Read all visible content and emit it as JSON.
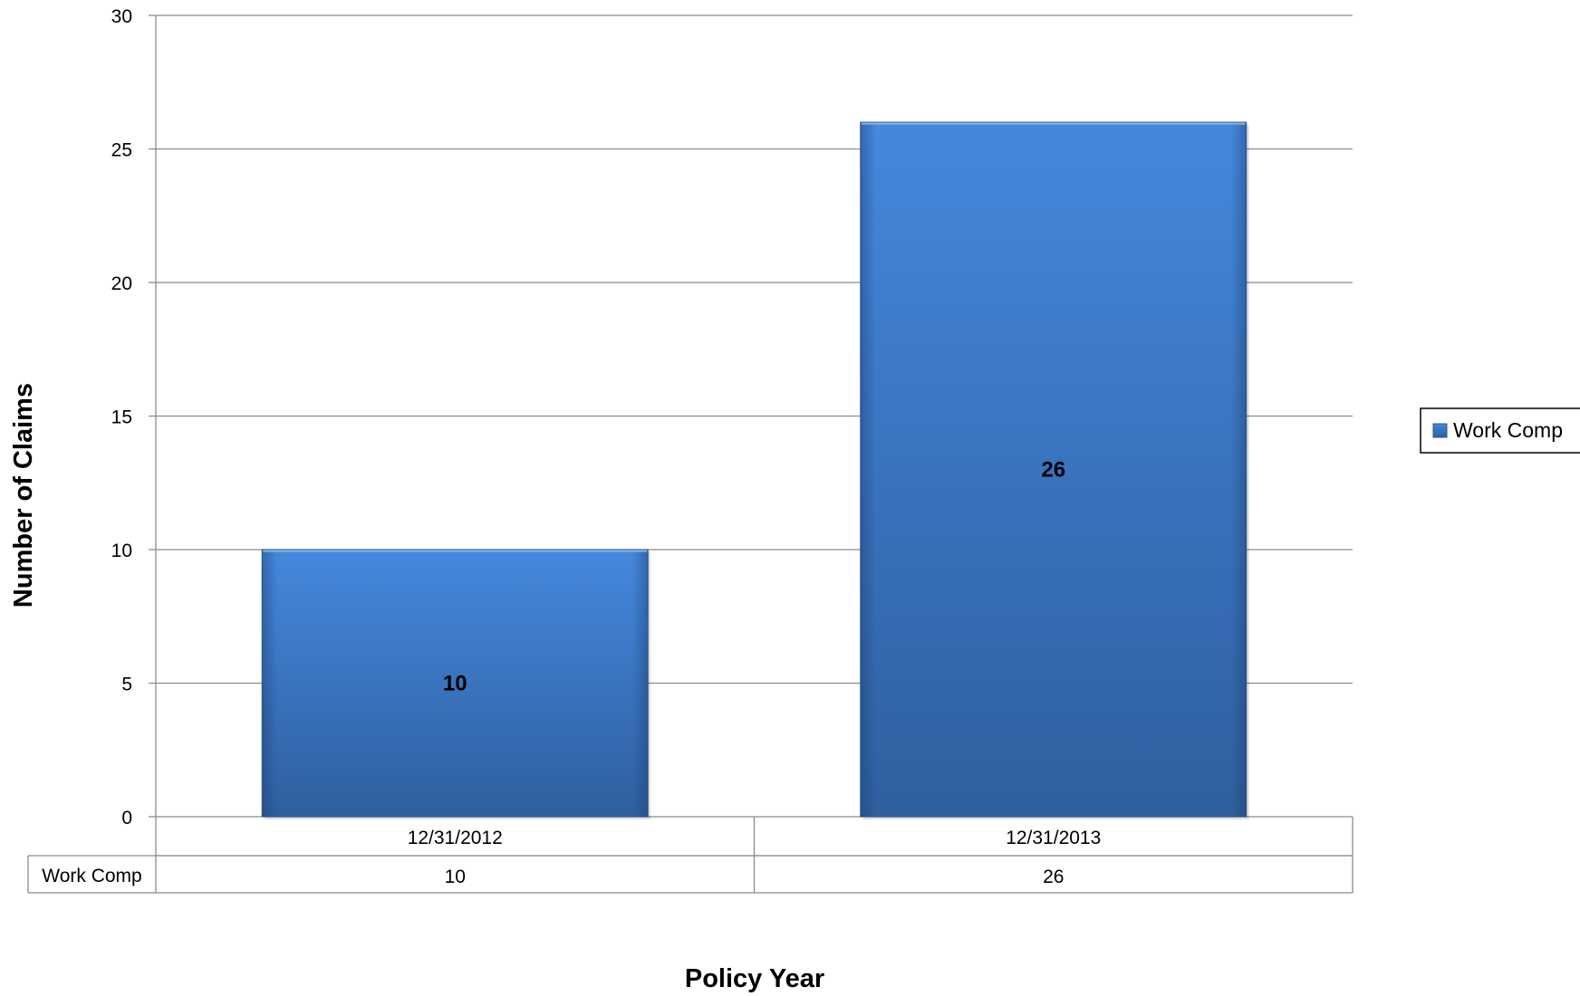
{
  "chart_data": {
    "type": "bar",
    "categories": [
      "12/31/2012",
      "12/31/2013"
    ],
    "series": [
      {
        "name": "Work Comp",
        "values": [
          10,
          26
        ]
      }
    ],
    "title": "",
    "xlabel": "Policy Year",
    "ylabel": "Number of Claims",
    "ylim": [
      0,
      30
    ],
    "yticks": [
      0,
      5,
      10,
      15,
      20,
      25,
      30
    ],
    "grid": true,
    "legend": {
      "position": "right",
      "entries": [
        "Work Comp"
      ]
    },
    "data_table": {
      "row_label": "Work Comp",
      "values": [
        "10",
        "26"
      ]
    },
    "data_labels": [
      "10",
      "26"
    ],
    "colors": {
      "bar": "#3B78C4",
      "bar_top": "#4488DD",
      "bar_bottom": "#2F5F9F",
      "grid": "#8C8C8C"
    }
  }
}
